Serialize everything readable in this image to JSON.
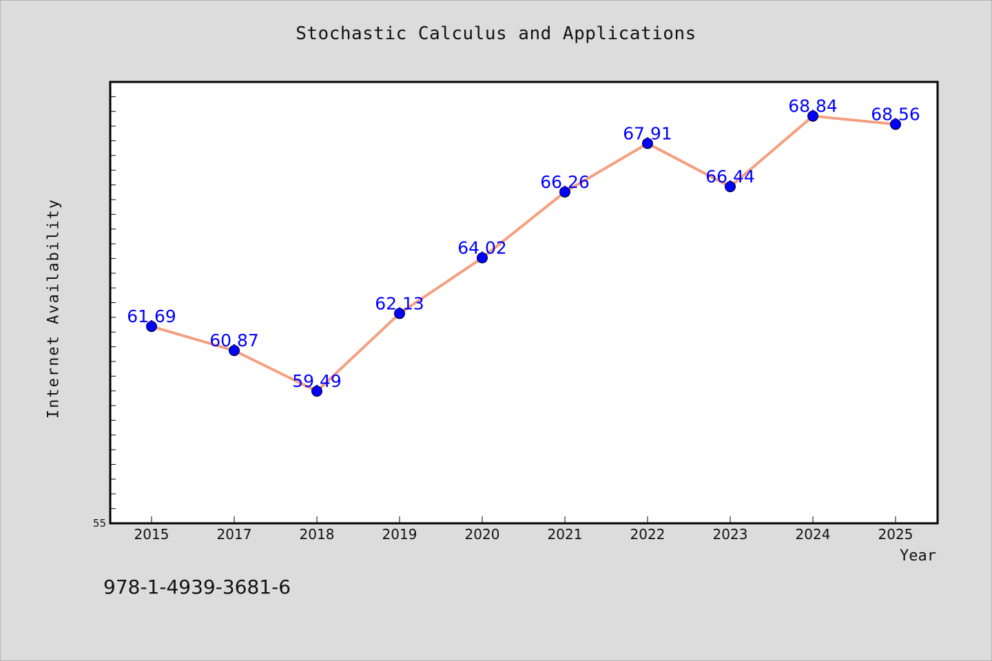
{
  "chart_data": {
    "type": "line",
    "title": "Stochastic Calculus and Applications",
    "xlabel": "Year",
    "ylabel": "Internet Availability",
    "categories": [
      "2015",
      "2017",
      "2018",
      "2019",
      "2020",
      "2021",
      "2022",
      "2023",
      "2024",
      "2025"
    ],
    "series": [
      {
        "values": [
          61.69,
          60.87,
          59.49,
          62.13,
          64.02,
          66.26,
          67.91,
          66.44,
          68.84,
          68.56
        ]
      }
    ],
    "data_labels": [
      "61.69",
      "60.87",
      "59.49",
      "62.13",
      "64.02",
      "66.26",
      "67.91",
      "66.44",
      "68.84",
      "68.56"
    ],
    "ylim": [
      55,
      70
    ],
    "y_tick_label": "55",
    "grid": false,
    "legend": "none",
    "colors": {
      "line": "#f4a07f",
      "marker": "#0000ff",
      "label": "#0000ff",
      "plot_bg": "#ffffff",
      "page_bg": "#dcdcdc"
    }
  },
  "footer": {
    "isbn": "978-1-4939-3681-6"
  }
}
